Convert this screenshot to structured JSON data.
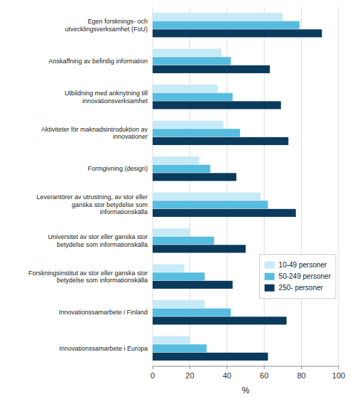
{
  "chart_data": {
    "type": "bar",
    "orientation": "horizontal",
    "categories": [
      "Innovationssamarbete i Europa",
      "Innovationssamarbete i Finland",
      "Forskningsinstitut av stor eller ganska stor\nbetydelse som informationskälla",
      "Universitet av stor eller ganska stor\nbetydelse som informationskälla",
      "Leverantörer av utrustning, av stor eller\nganska stor betydelse som\ninformationskälla",
      "Formgivning (design)",
      "Aktiviteter för maknadsintroduktion av\ninnovationer",
      "Utbildning med anknytning till\ninnovationsverksamhet",
      "Anskaffning av befintlig information",
      "Egen forsknings- och\nutvecklingsverksamhet (FoU)"
    ],
    "series": [
      {
        "name": "10-49 personer",
        "color": "#c6eaf7",
        "values": [
          20,
          28,
          17,
          20,
          58,
          25,
          38,
          35,
          37,
          70
        ]
      },
      {
        "name": "50-249 personer",
        "color": "#56bde0",
        "values": [
          29,
          42,
          28,
          33,
          62,
          31,
          47,
          43,
          42,
          79
        ]
      },
      {
        "name": "250- personer",
        "color": "#0a3a5c",
        "values": [
          62,
          72,
          43,
          50,
          77,
          45,
          73,
          69,
          63,
          91
        ]
      }
    ],
    "xlabel": "%",
    "xlim": [
      0,
      100
    ],
    "xticks": [
      0,
      20,
      40,
      60,
      80,
      100
    ],
    "grid": true,
    "legend": "lower right"
  }
}
